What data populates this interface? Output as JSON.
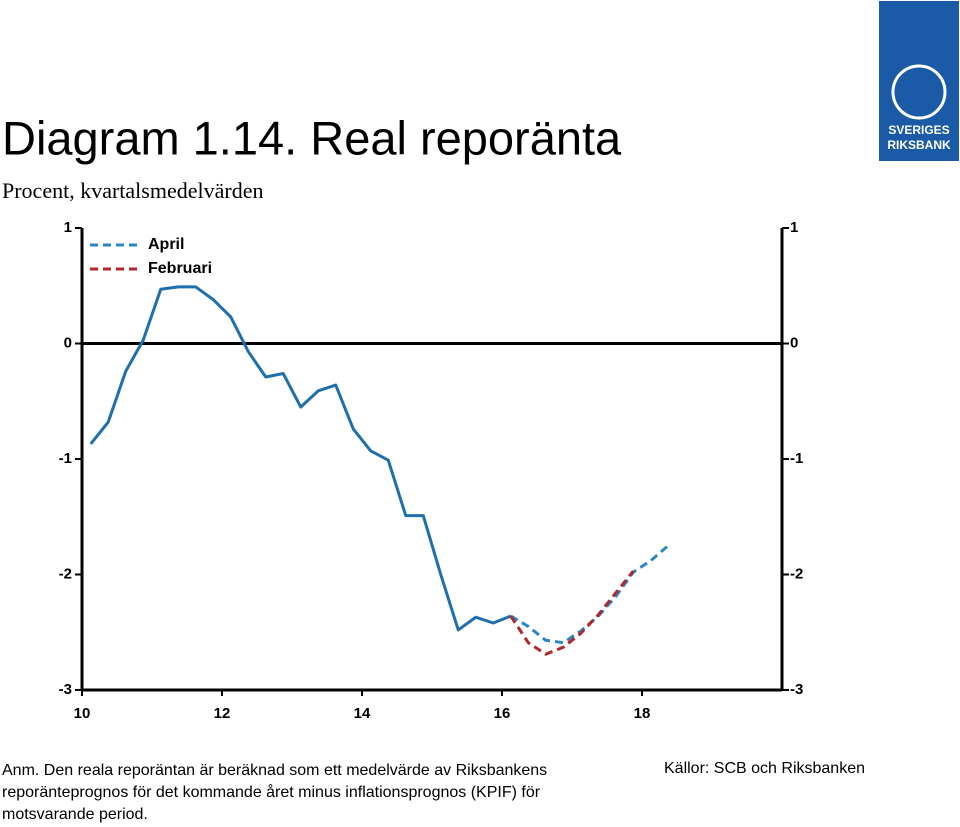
{
  "chart_data": {
    "type": "line",
    "title": "Diagram 1.14. Real reporänta",
    "subtitle": "Procent, kvartalsmedelvärden",
    "note": "Anm. Den reala reporäntan är beräknad som ett medelvärde av Riksbankens reporänteprognos för det kommande året minus inflationsprognos (KPIF) för motsvarande period.",
    "source": "Källor: SCB och Riksbanken",
    "x": [
      10.125,
      10.375,
      10.625,
      10.875,
      11.125,
      11.375,
      11.625,
      11.875,
      12.125,
      12.375,
      12.625,
      12.875,
      13.125,
      13.375,
      13.625,
      13.875,
      14.125,
      14.375,
      14.625,
      14.875,
      15.125,
      15.375,
      15.625,
      15.875,
      16.125,
      16.375,
      16.625,
      16.875,
      17.125,
      17.375,
      17.625,
      17.875,
      18.125,
      18.375
    ],
    "series": [
      {
        "color": "#1f6fad",
        "style": "solid",
        "values": [
          -0.87,
          -0.68,
          -0.24,
          0.03,
          0.47,
          0.49,
          0.49,
          0.38,
          0.23,
          -0.07,
          -0.29,
          -0.26,
          -0.55,
          -0.41,
          -0.36,
          -0.74,
          -0.93,
          -1.01,
          -1.49,
          -1.49,
          -2.0,
          -2.48,
          -2.37,
          -2.42,
          -2.36,
          null,
          null,
          null,
          null,
          null,
          null,
          null,
          null,
          null
        ]
      },
      {
        "name": "April",
        "color": "#2a86c4",
        "style": "dashed",
        "values": [
          null,
          null,
          null,
          null,
          null,
          null,
          null,
          null,
          null,
          null,
          null,
          null,
          null,
          null,
          null,
          null,
          null,
          null,
          null,
          null,
          null,
          null,
          null,
          null,
          -2.36,
          -2.45,
          -2.57,
          -2.59,
          -2.49,
          -2.36,
          -2.19,
          -1.98,
          -1.88,
          -1.75
        ]
      },
      {
        "name": "Februari",
        "color": "#b2262e",
        "style": "dashed",
        "values": [
          null,
          null,
          null,
          null,
          null,
          null,
          null,
          null,
          null,
          null,
          null,
          null,
          null,
          null,
          null,
          null,
          null,
          null,
          null,
          null,
          null,
          null,
          null,
          null,
          -2.36,
          -2.59,
          -2.69,
          -2.63,
          -2.51,
          -2.35,
          -2.16,
          -1.97,
          null,
          null
        ]
      }
    ],
    "xlim": [
      10,
      20
    ],
    "xticks": [
      10,
      12,
      14,
      16,
      18
    ],
    "ylim": [
      -3,
      1
    ],
    "yticks": [
      1,
      0,
      -1,
      -2,
      -3
    ],
    "y2lim": [
      -3,
      1
    ],
    "y2ticks": [
      1,
      0,
      -1,
      -2,
      -3
    ],
    "legend": "top-left"
  },
  "logo": [
    "SVERIGES",
    "RIKSBANK"
  ]
}
